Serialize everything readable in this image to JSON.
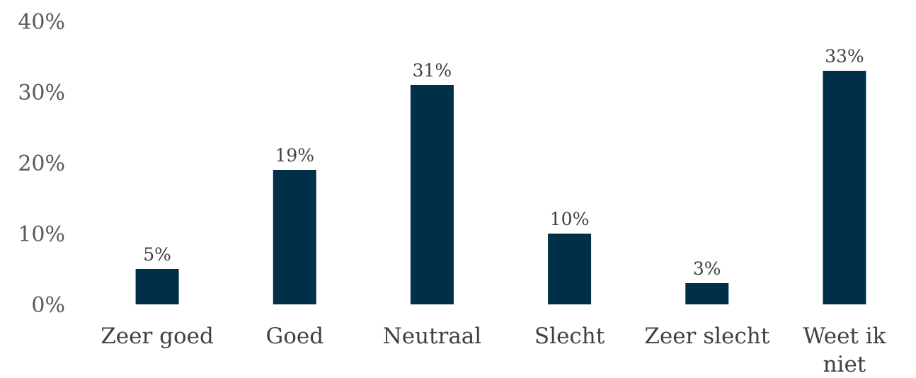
{
  "chart_data": {
    "type": "bar",
    "categories": [
      [
        "Zeer goed"
      ],
      [
        "Goed"
      ],
      [
        "Neutraal"
      ],
      [
        "Slecht"
      ],
      [
        "Zeer slecht"
      ],
      [
        "Weet ik",
        "niet"
      ]
    ],
    "values": [
      5,
      19,
      31,
      10,
      3,
      33
    ],
    "data_labels": [
      "5%",
      "19%",
      "31%",
      "10%",
      "3%",
      "33%"
    ],
    "y_ticks": [
      0,
      10,
      20,
      30,
      40
    ],
    "y_tick_labels": [
      "0%",
      "10%",
      "20%",
      "30%",
      "40%"
    ],
    "ylim": [
      0,
      40
    ],
    "grid": false,
    "bar_color": "#003049"
  }
}
